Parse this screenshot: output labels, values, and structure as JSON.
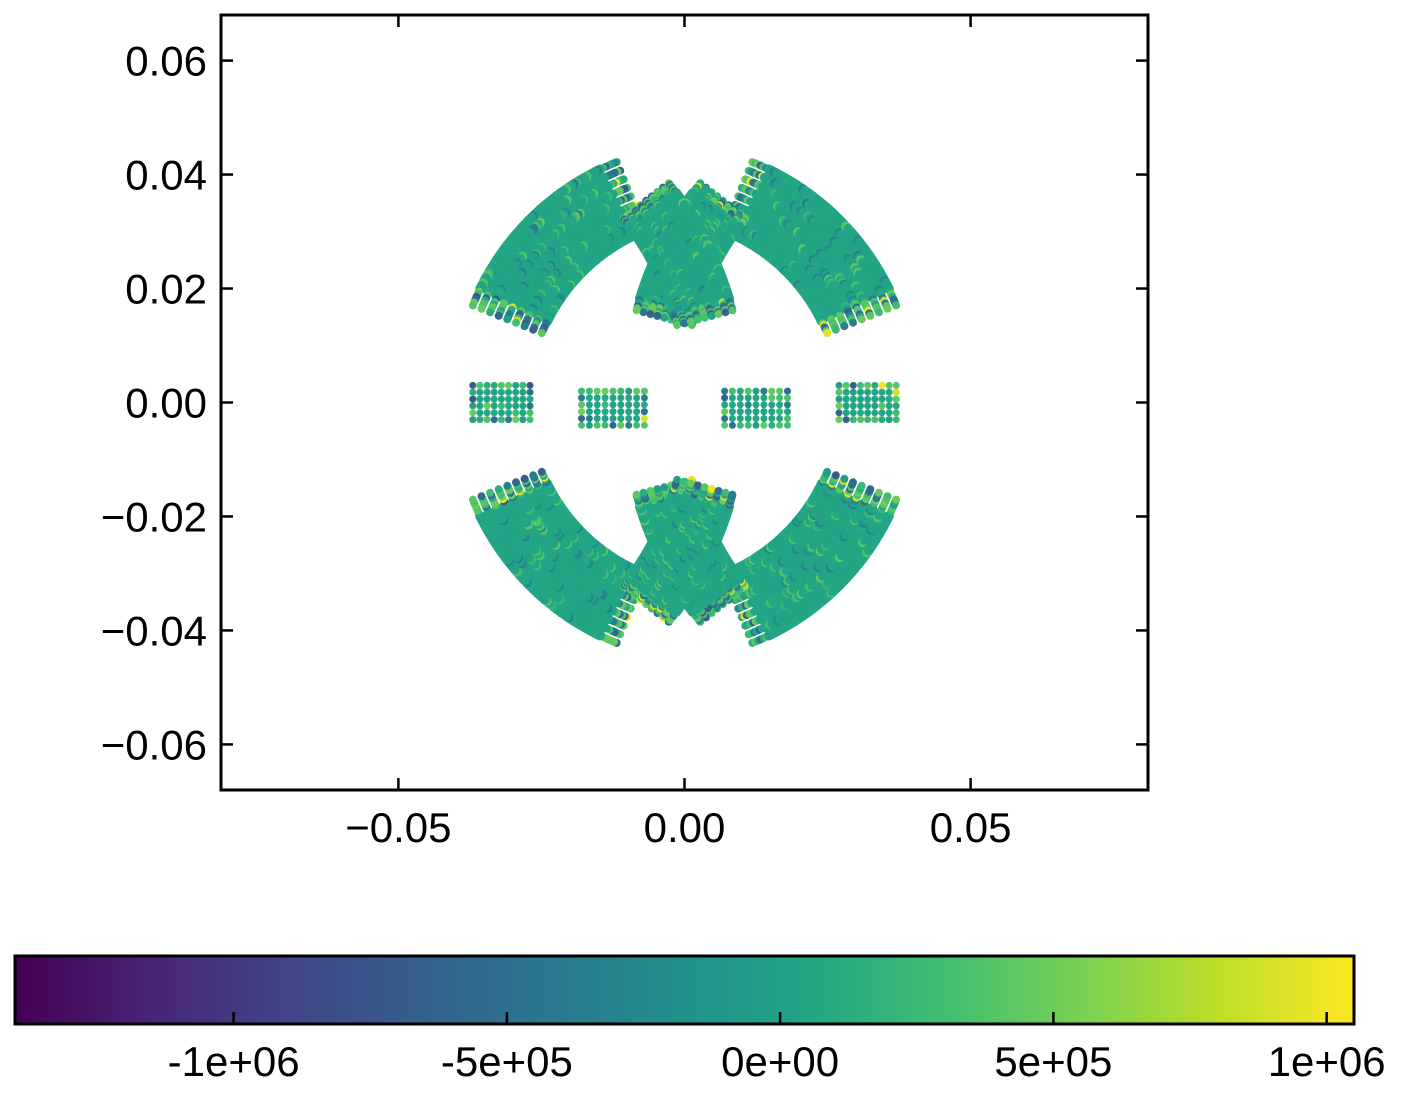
{
  "chart_data": {
    "type": "scatter",
    "title": "",
    "xlabel": "",
    "ylabel": "",
    "xlim": [
      -0.081,
      0.081
    ],
    "ylim": [
      -0.068,
      0.068
    ],
    "x_ticks": [
      -0.05,
      0.0,
      0.05
    ],
    "x_tick_labels": [
      "−0.05",
      "0.00",
      "0.05"
    ],
    "y_ticks": [
      0.06,
      0.04,
      0.02,
      0.0,
      -0.02,
      -0.04,
      -0.06
    ],
    "y_tick_labels": [
      "0.06",
      "0.04",
      "0.02",
      "0.00",
      "−0.02",
      "−0.04",
      "−0.06"
    ],
    "grid": false,
    "ticks_direction": "in",
    "ticks_mirrored": true,
    "colorscale": "viridis",
    "color_range": [
      -1400000,
      1050000
    ],
    "colorbar": {
      "orientation": "horizontal",
      "position": "bottom",
      "ticks": [
        -1000000,
        -500000,
        0,
        500000,
        1000000
      ],
      "tick_labels": [
        "-1e+06",
        "-5e+05",
        "0e+00",
        "5e+05",
        "1e+06"
      ]
    },
    "description_regions": [
      {
        "name": "outer-arc",
        "center": [
          0.0052,
          0.0
        ],
        "radius_inner": 0.0325,
        "radius_outer": 0.0455,
        "angle_from_deg": 112,
        "angle_to_deg": 158,
        "mirror": "both-axes",
        "typical_value": 50000
      },
      {
        "name": "inner-arc",
        "center": [
          0.052,
          0.0
        ],
        "radius_inner": 0.0525,
        "radius_outer": 0.0625,
        "angle_from_deg": 142,
        "angle_to_deg": 165,
        "mirror": "both-axes",
        "typical_value": 50000
      },
      {
        "name": "small-block-inner",
        "x": [
          -0.018,
          -0.007
        ],
        "y": [
          -0.004,
          0.002
        ],
        "mirror": "x",
        "typical_value": 0
      },
      {
        "name": "small-block-outer",
        "x": [
          -0.037,
          -0.027
        ],
        "y": [
          -0.003,
          0.003
        ],
        "mirror": "x",
        "typical_value": 0
      }
    ]
  }
}
